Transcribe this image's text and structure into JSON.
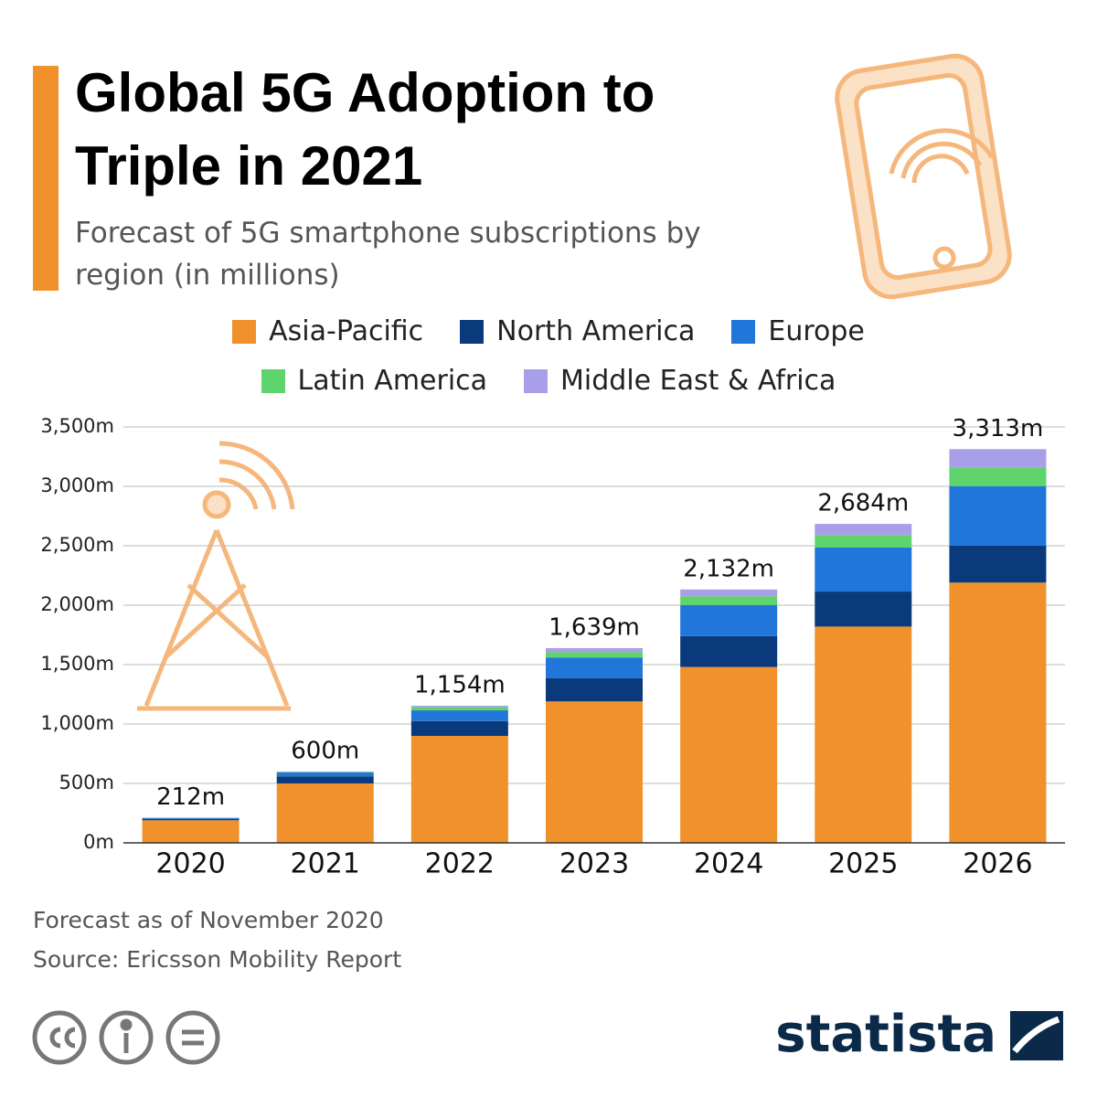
{
  "chart_data": {
    "type": "stacked_bar",
    "title": "Global 5G Adoption to Triple in 2021",
    "subtitle": "Forecast of 5G smartphone subscriptions by region (in millions)",
    "categories": [
      "2020",
      "2021",
      "2022",
      "2023",
      "2024",
      "2025",
      "2026"
    ],
    "series": [
      {
        "name": "Asia-Pacific",
        "color": "#f0912c",
        "values": [
          190,
          500,
          900,
          1190,
          1480,
          1820,
          2190
        ]
      },
      {
        "name": "North America",
        "color": "#0b3a7c",
        "values": [
          12,
          60,
          125,
          195,
          260,
          295,
          310
        ]
      },
      {
        "name": "Europe",
        "color": "#2176d9",
        "values": [
          8,
          32,
          90,
          175,
          260,
          370,
          500
        ]
      },
      {
        "name": "Latin America",
        "color": "#5fd36c",
        "values": [
          1,
          5,
          29,
          45,
          75,
          105,
          160
        ]
      },
      {
        "name": "Middle East & Africa",
        "color": "#a99fe8",
        "values": [
          1,
          3,
          10,
          34,
          57,
          94,
          153
        ]
      }
    ],
    "totals": {
      "values": [
        212,
        600,
        1154,
        1639,
        2132,
        2684,
        3313
      ],
      "value_labels": [
        "212m",
        "600m",
        "1,154m",
        "1,639m",
        "2,132m",
        "2,684m",
        "3,313m"
      ]
    },
    "ylim": [
      0,
      3500
    ],
    "yticks": [
      {
        "value": 0,
        "label": "0m"
      },
      {
        "value": 500,
        "label": "500m"
      },
      {
        "value": 1000,
        "label": "1,000m"
      },
      {
        "value": 1500,
        "label": "1,500m"
      },
      {
        "value": 2000,
        "label": "2,000m"
      },
      {
        "value": 2500,
        "label": "2,500m"
      },
      {
        "value": 3000,
        "label": "3,000m"
      },
      {
        "value": 3500,
        "label": "3,500m"
      }
    ],
    "grid": true,
    "notes": [
      "Forecast as of November 2020",
      "Source: Ericsson Mobility Report"
    ],
    "brand": "statista"
  }
}
